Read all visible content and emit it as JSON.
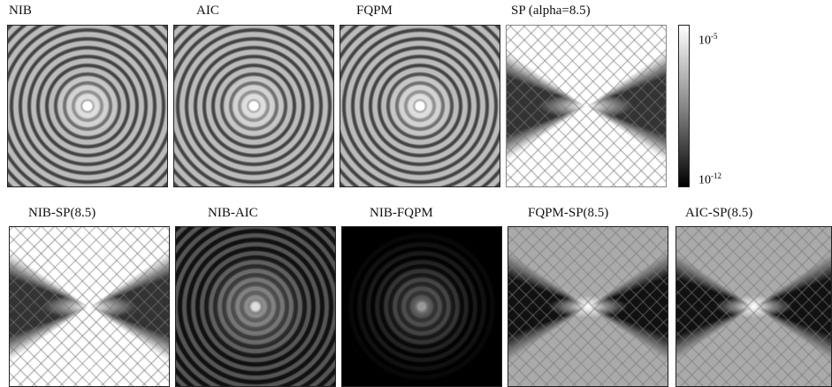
{
  "top_row": [
    "NIB",
    "AIC",
    "FQPM",
    "SP (alpha=8.5)"
  ],
  "colorbar": {
    "max": {
      "base": "10",
      "exponent": "-5"
    },
    "min": {
      "base": "10",
      "exponent": "-12"
    }
  },
  "bottom_row": [
    "NIB-SP(8.5)",
    "NIB-AIC",
    "NIB-FQPM",
    "FQPM-SP(8.5)",
    "AIC-SP(8.5)"
  ]
}
